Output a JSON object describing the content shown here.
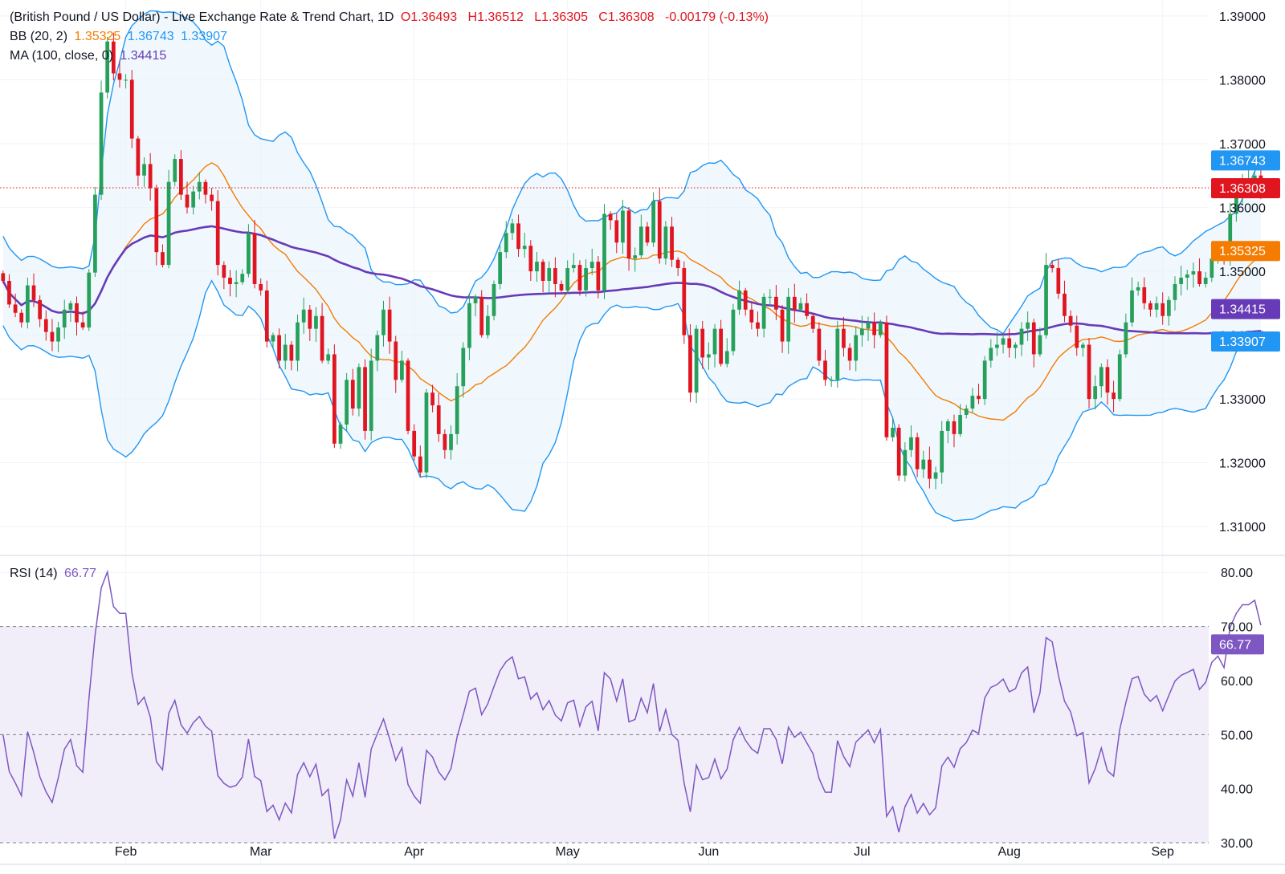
{
  "legend": {
    "title": "(British Pound / US Dollar) - Live Exchange Rate & Trend Chart, 1D",
    "ohlc": "O1.36493   H1.36512   L1.36305   C1.36308   -0.00179 (-0.13%)",
    "bb_label": "BB (20, 2)",
    "bb_mid": "1.35325",
    "bb_upper": "1.36743",
    "bb_lower": "1.33907",
    "ma_label": "MA (100, close, 0)",
    "ma_value": "1.34415",
    "rsi_label": "RSI (14)",
    "rsi_value": "66.77"
  },
  "price_tags": [
    {
      "text": "1.36743",
      "value": 1.36743,
      "color": "#2196f3"
    },
    {
      "text": "1.36308",
      "value": 1.36308,
      "color": "#e0151f"
    },
    {
      "text": "1.35325",
      "value": 1.35325,
      "color": "#f57c00"
    },
    {
      "text": "1.34415",
      "value": 1.34415,
      "color": "#673ab7"
    },
    {
      "text": "1.33907",
      "value": 1.33907,
      "color": "#2196f3"
    }
  ],
  "rsi_tag": {
    "text": "66.77",
    "value": 66.77,
    "color": "#7e57c2"
  },
  "colors": {
    "up": "#26a05a",
    "down": "#e0151f",
    "bb_band": "#2196f3",
    "bb_mid": "#f57c00",
    "ma": "#673ab7",
    "rsi": "#7e57c2",
    "rsi_zone": "#f1eefa"
  },
  "chart_data": [
    {
      "type": "candlestick",
      "title": "(British Pound / US Dollar) - Live Exchange Rate & Trend Chart, 1D",
      "y_ticks": [
        "1.39000",
        "1.38000",
        "1.37000",
        "1.36000",
        "1.35000",
        "1.34000",
        "1.33000",
        "1.32000",
        "1.31000"
      ],
      "ylim": [
        1.3055,
        1.3925
      ],
      "x_ticks": [
        {
          "label": "Feb",
          "index": 20
        },
        {
          "label": "Mar",
          "index": 42
        },
        {
          "label": "Apr",
          "index": 67
        },
        {
          "label": "May",
          "index": 92
        },
        {
          "label": "Jun",
          "index": 115
        },
        {
          "label": "Jul",
          "index": 140
        },
        {
          "label": "Aug",
          "index": 164
        },
        {
          "label": "Sep",
          "index": 189
        }
      ],
      "x_range": [
        -0.5,
        196.5
      ],
      "close": [
        1.3485,
        1.3448,
        1.3435,
        1.342,
        1.3478,
        1.3455,
        1.3425,
        1.3405,
        1.339,
        1.3412,
        1.344,
        1.345,
        1.342,
        1.3412,
        1.3498,
        1.362,
        1.378,
        1.386,
        1.381,
        1.38,
        1.38,
        1.3708,
        1.365,
        1.3668,
        1.363,
        1.353,
        1.351,
        1.364,
        1.3676,
        1.362,
        1.36,
        1.3625,
        1.364,
        1.362,
        1.361,
        1.351,
        1.349,
        1.348,
        1.3483,
        1.3496,
        1.356,
        1.348,
        1.347,
        1.339,
        1.34,
        1.336,
        1.3385,
        1.336,
        1.342,
        1.344,
        1.341,
        1.343,
        1.336,
        1.337,
        1.323,
        1.326,
        1.333,
        1.3285,
        1.335,
        1.325,
        1.336,
        1.34,
        1.344,
        1.339,
        1.333,
        1.336,
        1.325,
        1.321,
        1.3185,
        1.331,
        1.329,
        1.3245,
        1.322,
        1.3245,
        1.332,
        1.338,
        1.345,
        1.346,
        1.34,
        1.343,
        1.348,
        1.353,
        1.356,
        1.3575,
        1.3535,
        1.354,
        1.35,
        1.3515,
        1.3485,
        1.3505,
        1.348,
        1.347,
        1.3505,
        1.351,
        1.347,
        1.3505,
        1.3515,
        1.347,
        1.359,
        1.358,
        1.3545,
        1.3595,
        1.352,
        1.3525,
        1.357,
        1.3545,
        1.361,
        1.352,
        1.357,
        1.3518,
        1.3505,
        1.34,
        1.331,
        1.341,
        1.3365,
        1.337,
        1.341,
        1.3355,
        1.3375,
        1.344,
        1.347,
        1.344,
        1.342,
        1.341,
        1.346,
        1.346,
        1.344,
        1.339,
        1.346,
        1.344,
        1.345,
        1.343,
        1.341,
        1.336,
        1.333,
        1.333,
        1.341,
        1.338,
        1.336,
        1.34,
        1.341,
        1.342,
        1.34,
        1.342,
        1.324,
        1.3255,
        1.318,
        1.322,
        1.324,
        1.319,
        1.3205,
        1.3175,
        1.3185,
        1.325,
        1.3265,
        1.3245,
        1.3275,
        1.3285,
        1.3305,
        1.33,
        1.336,
        1.338,
        1.3385,
        1.3395,
        1.338,
        1.3385,
        1.341,
        1.342,
        1.337,
        1.34,
        1.351,
        1.3505,
        1.3465,
        1.343,
        1.3415,
        1.338,
        1.3385,
        1.33,
        1.332,
        1.335,
        1.331,
        1.33,
        1.337,
        1.342,
        1.347,
        1.3475,
        1.345,
        1.344,
        1.345,
        1.343,
        1.3455,
        1.348,
        1.349,
        1.3495,
        1.35,
        1.348,
        1.349,
        1.352,
        1.353,
        1.352,
        1.359,
        1.362,
        1.364,
        1.364,
        1.365,
        1.3631
      ],
      "open_close_note": "each candle opens at the previous close",
      "close_last": 1.36308,
      "bb_upper_last": 1.36743,
      "bb_mid_last": 1.35325,
      "bb_lower_last": 1.33907,
      "ma100_last": 1.34415
    },
    {
      "type": "line",
      "title": "RSI (14)",
      "y_ticks": [
        "80.00",
        "70.00",
        "60.00",
        "50.00",
        "40.00",
        "30.00"
      ],
      "ylim": [
        26.0,
        83.0
      ],
      "overbought": 70,
      "oversold": 30,
      "midline": 50,
      "last": 66.77
    }
  ]
}
